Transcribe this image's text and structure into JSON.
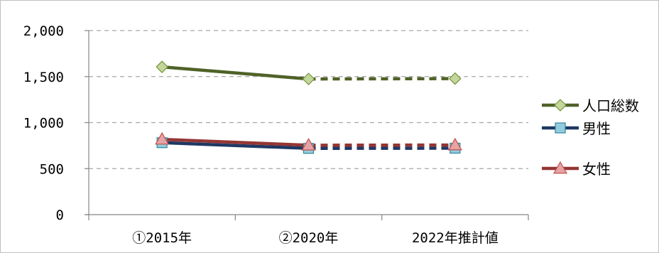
{
  "chart_data": {
    "type": "line",
    "categories": [
      "①2015年",
      "②2020年",
      "2022年推計値"
    ],
    "ylim": [
      0,
      2000
    ],
    "yticks": [
      0,
      500,
      1000,
      1500,
      2000
    ],
    "ytick_labels": [
      "0",
      "500",
      "1,000",
      "1,500",
      "2,000"
    ],
    "grid": true,
    "legend_position": "right",
    "series": [
      {
        "name": "人口総数",
        "values": [
          1605,
          1474,
          1478
        ],
        "color": "#4f6228",
        "marker": "diamond",
        "marker_fill": "#c3d69b",
        "projected_from_index": 1
      },
      {
        "name": "男性",
        "values": [
          782,
          720,
          722
        ],
        "color": "#1f3864",
        "marker": "square",
        "marker_fill": "#93cddd",
        "projected_from_index": 1
      },
      {
        "name": "女性",
        "values": [
          818,
          754,
          756
        ],
        "color": "#943634",
        "marker": "triangle",
        "marker_fill": "#e6a3a3",
        "projected_from_index": 1
      }
    ]
  }
}
